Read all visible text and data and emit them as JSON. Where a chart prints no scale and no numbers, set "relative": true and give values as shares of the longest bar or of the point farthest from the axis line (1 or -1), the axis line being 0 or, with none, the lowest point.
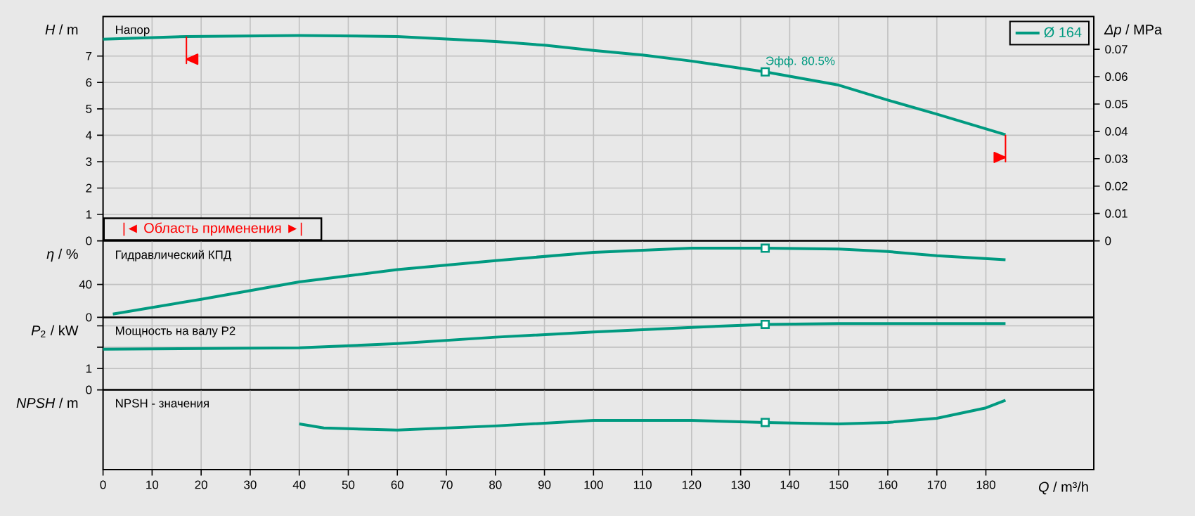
{
  "chart_data": [
    {
      "type": "line",
      "title": "Напор",
      "ylabel": "*H* / m",
      "y2label": "*Δp* / MPa",
      "xlim": [
        0,
        202
      ],
      "xticks": [
        0,
        10,
        20,
        30,
        40,
        50,
        60,
        70,
        80,
        90,
        100,
        110,
        120,
        130,
        140,
        150,
        160,
        170,
        180
      ],
      "ylim": [
        0,
        8.5
      ],
      "yticks": [
        0,
        1,
        2,
        3,
        4,
        5,
        6,
        7
      ],
      "y2lim": [
        0,
        0.082
      ],
      "y2ticks": [
        0,
        0.01,
        0.02,
        0.03,
        0.04,
        0.05,
        0.06,
        0.07
      ],
      "grid": true,
      "legend": "top right",
      "tick_labels": "y",
      "series": [
        {
          "name": "Ø 164",
          "color": "#009a80",
          "x": [
            0,
            17,
            40,
            60,
            80,
            90,
            100,
            110,
            120,
            135,
            150,
            160,
            170,
            184
          ],
          "values": [
            7.64,
            7.74,
            7.78,
            7.74,
            7.55,
            7.41,
            7.21,
            7.04,
            6.81,
            6.4,
            5.9,
            5.33,
            4.8,
            4.02
          ]
        },
        {
          "type": "scatter",
          "color": "#009a80",
          "marker": "square",
          "x": [
            135
          ],
          "values": [
            6.4
          ]
        }
      ],
      "ref_lines": [
        {
          "axis": "x",
          "value": 17,
          "color": "#ff0000"
        },
        {
          "axis": "x",
          "value": 184,
          "color": "#ff0000"
        }
      ],
      "annotations": [
        {
          "text": "Эфф.  80.5%",
          "x": 135,
          "y": 6.4
        },
        "|◄ Область применения ►|"
      ]
    },
    {
      "type": "line",
      "title": "Гидравлический КПД",
      "ylabel": "*η* / %",
      "xlim": [
        0,
        202
      ],
      "xticks": [
        0,
        10,
        20,
        30,
        40,
        50,
        60,
        70,
        80,
        90,
        100,
        110,
        120,
        130,
        140,
        150,
        160,
        170,
        180
      ],
      "ylim": [
        0,
        93
      ],
      "yticks": [
        0,
        40
      ],
      "grid": true,
      "tick_labels": "y",
      "series": [
        {
          "color": "#009a80",
          "x": [
            2,
            20,
            40,
            60,
            80,
            100,
            120,
            135,
            150,
            160,
            170,
            184
          ],
          "values": [
            4,
            22,
            43,
            58,
            69,
            79,
            84,
            84,
            83,
            80,
            75,
            70
          ]
        },
        {
          "type": "scatter",
          "color": "#009a80",
          "marker": "square",
          "x": [
            135
          ],
          "values": [
            84
          ]
        }
      ]
    },
    {
      "type": "line",
      "title": "Мощность на валу P2",
      "ylabel": "*P*$_{2}$ / kW",
      "xlim": [
        0,
        202
      ],
      "xticks": [
        0,
        10,
        20,
        30,
        40,
        50,
        60,
        70,
        80,
        90,
        100,
        110,
        120,
        130,
        140,
        150,
        160,
        170,
        180
      ],
      "ylim": [
        0,
        3.4
      ],
      "yticks": [
        0,
        1,
        {
          "value": 2,
          "label": null
        },
        {
          "value": 3,
          "label": null
        }
      ],
      "grid": true,
      "tick_labels": "y",
      "series": [
        {
          "color": "#009a80",
          "x": [
            0,
            40,
            60,
            80,
            100,
            120,
            135,
            150,
            184
          ],
          "values": [
            1.91,
            1.97,
            2.17,
            2.47,
            2.71,
            2.93,
            3.07,
            3.11,
            3.11
          ]
        },
        {
          "type": "scatter",
          "color": "#009a80",
          "marker": "square",
          "x": [
            135
          ],
          "values": [
            3.07
          ]
        }
      ]
    },
    {
      "type": "line",
      "title": "NPSH  - значения",
      "ylabel": "*NPSH* / m",
      "xlabel": "*Q* / m³/h",
      "xlim": [
        0,
        202
      ],
      "xticks": [
        0,
        10,
        20,
        30,
        40,
        50,
        60,
        70,
        80,
        90,
        100,
        110,
        120,
        130,
        140,
        150,
        160,
        170,
        180
      ],
      "relative": true,
      "grid": true,
      "series": [
        {
          "color": "#009a80",
          "x": [
            40,
            45,
            60,
            80,
            100,
            120,
            135,
            150,
            160,
            170,
            180,
            184
          ],
          "values": [
            0.66,
            0.6,
            0.57,
            0.63,
            0.71,
            0.71,
            0.68,
            0.66,
            0.68,
            0.74,
            0.89,
            1
          ]
        },
        {
          "type": "scatter",
          "color": "#009a80",
          "marker": "square",
          "x": [
            135
          ],
          "values": [
            0.68
          ]
        }
      ]
    }
  ]
}
